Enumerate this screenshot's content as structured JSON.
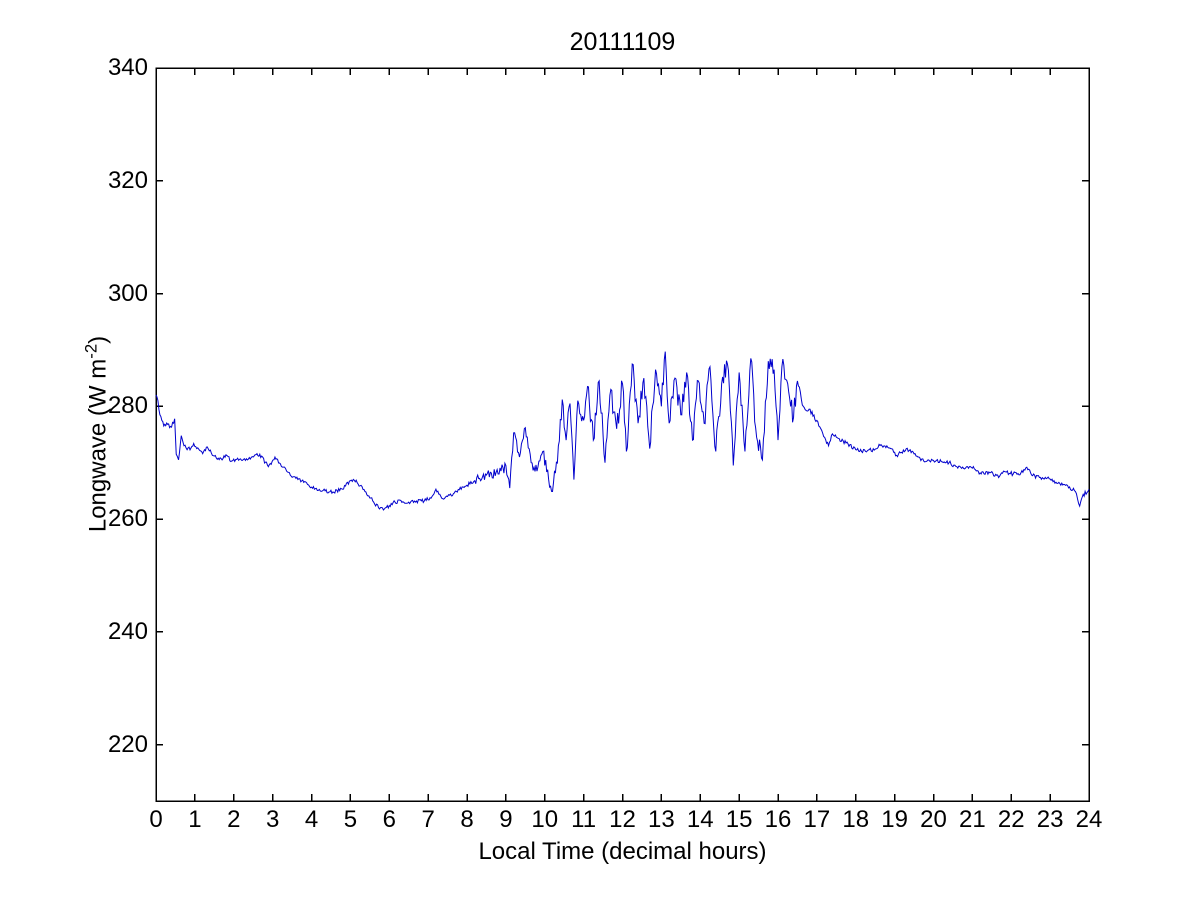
{
  "figure": {
    "background": "#FFFFFF"
  },
  "chart_data": {
    "type": "line",
    "title": "20111109",
    "xlabel": "Local Time (decimal hours)",
    "ylabel": "Longwave (W m^-2)",
    "ylabel_parts": {
      "main": "Longwave (W m",
      "sup": "-2",
      "end": ")"
    },
    "xlim": [
      0,
      24
    ],
    "ylim": [
      210,
      340
    ],
    "xticks": [
      0,
      1,
      2,
      3,
      4,
      5,
      6,
      7,
      8,
      9,
      10,
      11,
      12,
      13,
      14,
      15,
      16,
      17,
      18,
      19,
      20,
      21,
      22,
      23,
      24
    ],
    "yticks": [
      220,
      240,
      260,
      280,
      300,
      320,
      340
    ],
    "grid": false,
    "legend": null,
    "box": true,
    "tick_direction": "in",
    "axis_color": "#000000",
    "line_color": "#0000CC",
    "background": "#FFFFFF",
    "series": [
      {
        "name": "longwave",
        "x": [
          0,
          0.05,
          0.1,
          0.15,
          0.2,
          0.3,
          0.4,
          0.48,
          0.52,
          0.58,
          0.65,
          0.72,
          0.8,
          0.9,
          0.97,
          1.1,
          1.2,
          1.32,
          1.45,
          1.6,
          1.7,
          1.8,
          1.95,
          2.1,
          2.3,
          2.5,
          2.67,
          2.89,
          3.06,
          3.2,
          3.36,
          3.55,
          3.8,
          4.1,
          4.35,
          4.55,
          4.8,
          5.0,
          5.1,
          5.25,
          5.4,
          5.6,
          5.75,
          5.9,
          6.0,
          6.15,
          6.3,
          6.5,
          6.7,
          6.9,
          7.1,
          7.2,
          7.35,
          7.5,
          7.65,
          7.8,
          8.0,
          8.2,
          8.4,
          8.6,
          8.8,
          9.0,
          9.1,
          9.2,
          9.35,
          9.5,
          9.65,
          9.8,
          9.95,
          10.1,
          10.2,
          10.35,
          10.45,
          10.55,
          10.65,
          10.75,
          10.85,
          11.0,
          11.1,
          11.25,
          11.4,
          11.55,
          11.7,
          11.85,
          12.0,
          12.1,
          12.25,
          12.4,
          12.55,
          12.7,
          12.85,
          13.0,
          13.1,
          13.2,
          13.35,
          13.5,
          13.65,
          13.8,
          13.95,
          14.1,
          14.25,
          14.4,
          14.55,
          14.7,
          14.85,
          15.0,
          15.15,
          15.3,
          15.45,
          15.6,
          15.75,
          15.9,
          16.0,
          16.1,
          16.25,
          16.4,
          16.5,
          16.65,
          16.8,
          17.0,
          17.2,
          17.3,
          17.4,
          17.55,
          17.75,
          18.0,
          18.25,
          18.5,
          18.65,
          18.9,
          19.05,
          19.3,
          19.6,
          19.8,
          20.0,
          20.2,
          20.4,
          20.6,
          20.8,
          20.95,
          21.2,
          21.45,
          21.7,
          21.8,
          22.05,
          22.3,
          22.4,
          22.55,
          22.75,
          23.0,
          23.25,
          23.5,
          23.65,
          23.76,
          23.85,
          23.95,
          24.0
        ],
        "y": [
          282,
          281,
          278.5,
          277.5,
          276.5,
          276.8,
          276.3,
          277.8,
          271.5,
          270.5,
          274.8,
          273,
          272.3,
          272.6,
          273.4,
          272.4,
          271.6,
          272.8,
          271.3,
          270.8,
          270.5,
          271.4,
          270.3,
          270.8,
          270.4,
          271,
          271.5,
          269.3,
          271,
          269.8,
          268.5,
          267.5,
          266.5,
          265.4,
          265,
          264.8,
          265.3,
          266.8,
          266.9,
          265.9,
          264.8,
          263,
          261.8,
          262,
          262.4,
          263,
          263.3,
          263,
          263.2,
          263.2,
          264,
          265.3,
          263.7,
          264,
          264.5,
          265.2,
          266,
          266.8,
          267.5,
          268.3,
          268,
          269.5,
          265.5,
          275.3,
          271,
          276.2,
          270,
          268.5,
          272,
          267,
          264.9,
          273,
          281.2,
          274,
          280.5,
          267,
          281,
          277.5,
          283.5,
          274,
          284.5,
          270,
          283,
          276,
          284,
          272,
          287.5,
          277,
          285,
          272.5,
          286.5,
          280,
          289.7,
          277,
          285,
          278.5,
          286,
          274,
          284.5,
          277,
          287,
          272,
          284,
          287.5,
          269.5,
          286,
          272,
          288.5,
          274.5,
          270.5,
          288,
          286.5,
          274,
          287,
          284,
          278,
          284.5,
          280,
          279.5,
          277.5,
          274.5,
          273,
          275.1,
          274.3,
          273.5,
          272.3,
          272,
          272.4,
          273.2,
          272.5,
          271.3,
          272.5,
          271,
          270.2,
          270.4,
          270.2,
          270,
          269.3,
          268.9,
          269.3,
          268.2,
          268.2,
          267.6,
          268.5,
          268,
          268.3,
          269.2,
          267.7,
          267.4,
          267.1,
          266.3,
          265.7,
          264.9,
          262.3,
          264.4,
          264.7,
          265.3
        ]
      }
    ],
    "noise_segments": [
      {
        "from": 0.0,
        "to": 8.2,
        "amp": 0.35
      },
      {
        "from": 8.2,
        "to": 10.3,
        "amp": 1.0
      },
      {
        "from": 10.3,
        "to": 16.55,
        "amp": 1.9
      },
      {
        "from": 16.55,
        "to": 17.1,
        "amp": 0.7
      },
      {
        "from": 17.1,
        "to": 23.6,
        "amp": 0.35
      },
      {
        "from": 23.6,
        "to": 24.0,
        "amp": 0.5
      }
    ],
    "noise_clamp": [
      261,
      290
    ],
    "noise_seed": 20111109
  }
}
